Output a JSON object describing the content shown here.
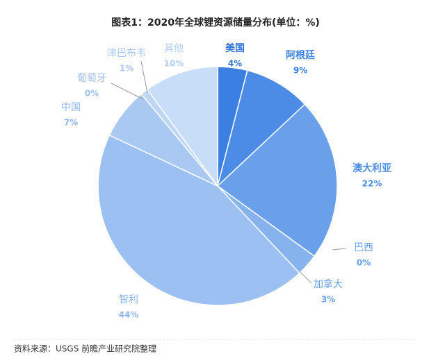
{
  "chart_data": {
    "type": "pie",
    "title": "图表1：2020年全球锂资源储量分布(单位：%)",
    "categories": [
      "美国",
      "阿根廷",
      "澳大利亚",
      "巴西",
      "加拿大",
      "智利",
      "中国",
      "葡萄牙",
      "津巴布韦",
      "其他"
    ],
    "values": [
      4,
      9,
      22,
      0,
      3,
      44,
      7,
      0,
      1,
      10
    ],
    "value_labels": [
      "4%",
      "9%",
      "22%",
      "0%",
      "3%",
      "44%",
      "7%",
      "0%",
      "1%",
      "10%"
    ],
    "colors": [
      "#3b7fe3",
      "#4d8ce6",
      "#6aa0ea",
      "#78aaec",
      "#86b3ee",
      "#9bc0f1",
      "#a9c9f3",
      "#b3d0f4",
      "#bcd6f5",
      "#c8ddf7"
    ],
    "label_colors": [
      "#2f72d8",
      "#3f82e0",
      "#4f8de2",
      "#6aa0ea",
      "#6aa0ea",
      "#8fb6ee",
      "#8fb6ee",
      "#a2c3f1",
      "#a9c9f3",
      "#b3d0f4"
    ]
  },
  "source": "资料来源：USGS 前瞻产业研究院整理"
}
